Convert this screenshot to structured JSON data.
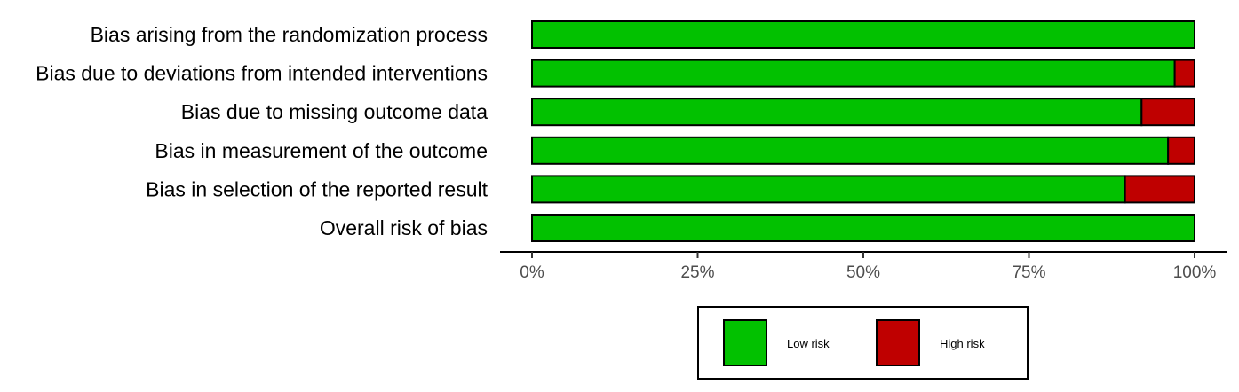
{
  "chart_data": {
    "type": "bar",
    "orientation": "horizontal",
    "stacked": true,
    "categories": [
      "Bias arising from the randomization process",
      "Bias due to deviations from intended interventions",
      "Bias due to missing outcome data",
      "Bias in measurement of the outcome",
      "Bias in selection of the reported result",
      "Overall risk of bias"
    ],
    "series": [
      {
        "name": "Low risk",
        "color": "#02c100",
        "values": [
          100,
          97,
          92,
          96,
          89.5,
          100
        ]
      },
      {
        "name": "High risk",
        "color": "#bf0000",
        "values": [
          0,
          3,
          8,
          4,
          10.5,
          0
        ]
      }
    ],
    "xlim": [
      0,
      100
    ],
    "xticks": [
      0,
      25,
      50,
      75,
      100
    ],
    "xtick_labels": [
      "0%",
      "25%",
      "50%",
      "75%",
      "100%"
    ],
    "title": "",
    "xlabel": "",
    "ylabel": "",
    "grid": false,
    "legend_position": "bottom"
  }
}
